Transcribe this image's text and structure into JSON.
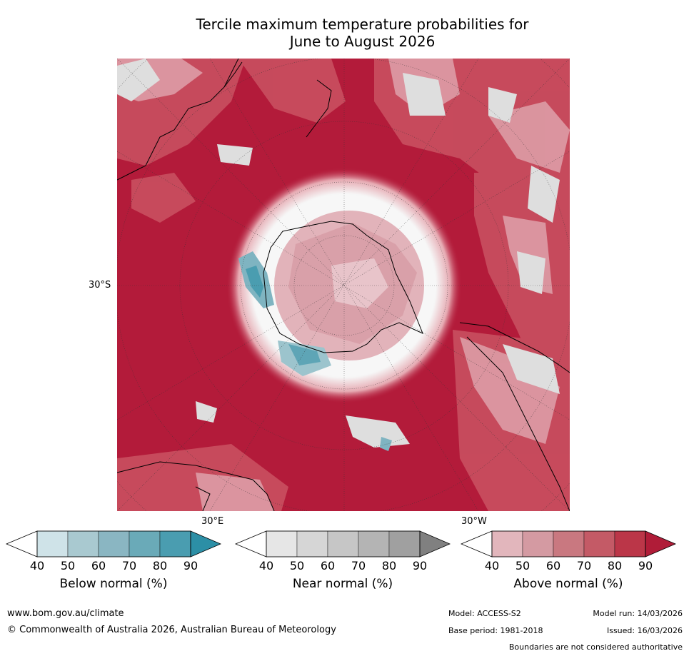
{
  "title": {
    "line1": "Tercile maximum temperature probabilities for",
    "line2": "June to August 2026"
  },
  "map_labels": {
    "lat_label": "30°S",
    "lon_label_east": "30°E",
    "lon_label_west": "30°W"
  },
  "legends": [
    {
      "label": "Below normal (%)",
      "ticks": [
        "40",
        "50",
        "60",
        "70",
        "80",
        "90"
      ],
      "colors": [
        "#ffffff",
        "#cfe3e8",
        "#a9c9d0",
        "#8ab6c2",
        "#6aaab8",
        "#4a9db0",
        "#2c8fa6"
      ]
    },
    {
      "label": "Near normal (%)",
      "ticks": [
        "40",
        "50",
        "60",
        "70",
        "80",
        "90"
      ],
      "colors": [
        "#ffffff",
        "#e6e6e6",
        "#d6d6d6",
        "#c6c6c6",
        "#b4b4b4",
        "#a0a0a0",
        "#808080"
      ]
    },
    {
      "label": "Above normal (%)",
      "ticks": [
        "40",
        "50",
        "60",
        "70",
        "80",
        "90"
      ],
      "colors": [
        "#ffffff",
        "#e2b6bc",
        "#d49aa2",
        "#c97880",
        "#c45a66",
        "#bb3648",
        "#b01c38"
      ]
    }
  ],
  "colors": {
    "above_dominant": "#b31b3a",
    "land_outline": "#000000"
  },
  "footer": {
    "website": "www.bom.gov.au/climate",
    "copyright": "© Commonwealth of Australia 2026, Australian Bureau of Meteorology",
    "model": "Model: ACCESS-S2",
    "model_run": "Model run: 14/03/2026",
    "base_period": "Base period: 1981-2018",
    "issued": "Issued: 16/03/2026",
    "disclaimer": "Boundaries are not considered authoritative"
  }
}
